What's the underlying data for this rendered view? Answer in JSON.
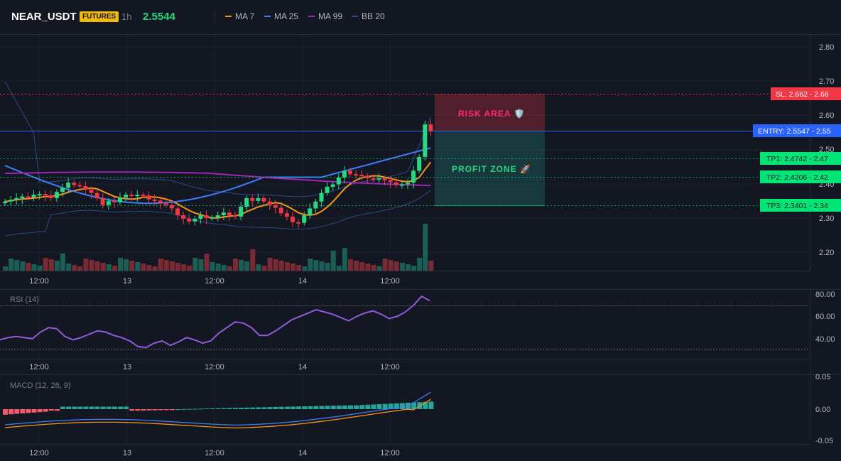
{
  "header": {
    "symbol": "NEAR_USDT",
    "badge": "FUTURES",
    "timeframe": "1h",
    "last_price": "2.5544",
    "indicators": [
      {
        "label": "MA 7",
        "color": "#f7931a"
      },
      {
        "label": "MA 25",
        "color": "#3d7df5"
      },
      {
        "label": "MA 99",
        "color": "#9c27b0"
      },
      {
        "label": "BB 20",
        "color": "#2d4a8a"
      }
    ]
  },
  "price_axis": [
    "2.80",
    "2.70",
    "2.60",
    "2.50",
    "2.40",
    "2.30",
    "2.20"
  ],
  "levels": {
    "sl": {
      "label": "SL: 2.662 - 2.66",
      "color": "#f23645"
    },
    "entry": {
      "label": "ENTRY: 2.5547 - 2.55",
      "color": "#2962ff"
    },
    "tp1": {
      "label": "TP1: 2.4742 - 2.47",
      "color": "#00e676"
    },
    "tp2": {
      "label": "TP2: 2.4206 - 2.42",
      "color": "#00e676"
    },
    "tp3": {
      "label": "TP3: 2.3401 - 2.34",
      "color": "#00e676"
    }
  },
  "zones": {
    "risk": "RISK AREA 🛡️",
    "profit": "PROFIT ZONE 🚀"
  },
  "time_axis": [
    "12:00",
    "13",
    "12:00",
    "14",
    "12:00"
  ],
  "rsi": {
    "title": "RSI (14)",
    "axis": [
      "80.00",
      "60.00",
      "40.00"
    ]
  },
  "macd": {
    "title": "MACD (12, 26, 9)",
    "axis": [
      "0.05",
      "0.00",
      "-0.05"
    ]
  },
  "colors": {
    "up": "#26d980",
    "down": "#f23645",
    "background": "#131722"
  }
}
